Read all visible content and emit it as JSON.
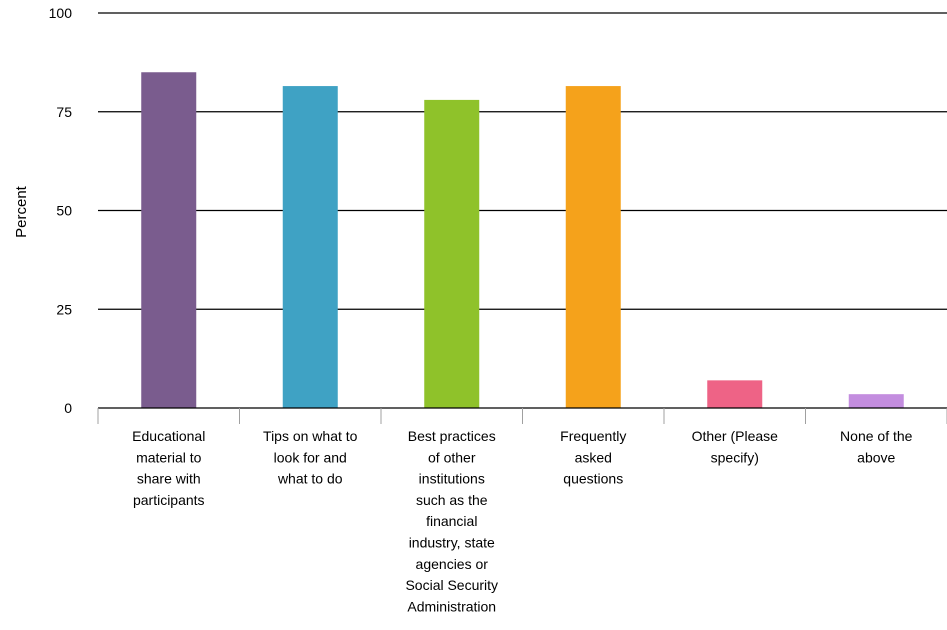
{
  "chart_data": {
    "type": "bar",
    "title": "",
    "xlabel": "",
    "ylabel": "Percent",
    "ylim": [
      0,
      100
    ],
    "yticks": [
      0,
      25,
      50,
      75,
      100
    ],
    "grid": true,
    "categories": [
      "Educational material to share with participants",
      "Tips on what to look for and what to do",
      "Best practices of other institutions such as the financial industry, state agencies or Social Security Administration",
      "Frequently asked questions",
      "Other (Please specify)",
      "None of the above"
    ],
    "category_lines": [
      [
        "Educational",
        "material to",
        "share with",
        "participants"
      ],
      [
        "Tips on what to",
        "look for and",
        "what to do"
      ],
      [
        "Best practices",
        "of other",
        "institutions",
        "such as the",
        "financial",
        "industry, state",
        "agencies or",
        "Social Security",
        "Administration"
      ],
      [
        "Frequently",
        "asked",
        "questions"
      ],
      [
        "Other (Please",
        "specify)"
      ],
      [
        "None of the",
        "above"
      ]
    ],
    "values": [
      85,
      81.5,
      78,
      81.5,
      7,
      3.5
    ],
    "colors": [
      "#7a5c8e",
      "#3fa2c4",
      "#8fc22a",
      "#f5a21b",
      "#ee6386",
      "#c38ddf"
    ]
  }
}
